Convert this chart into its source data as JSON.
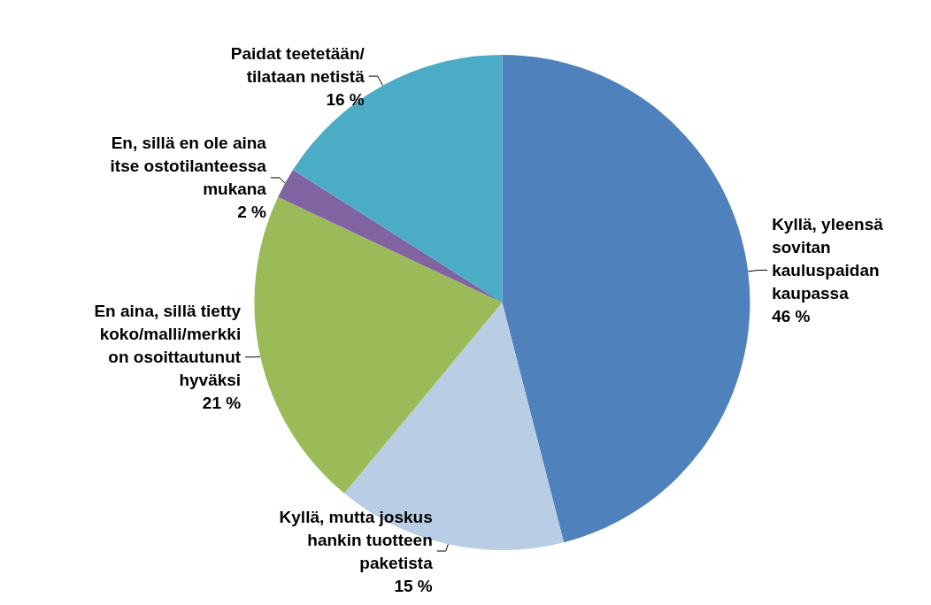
{
  "chart_data": {
    "type": "pie",
    "categories": [
      "Kyllä, yleensä\nsovitan\nkauluspaidan\nkaupassa",
      "Kyllä, mutta joskus\nhankin tuotteen\npaketista",
      "En aina, sillä tietty\nkoko/malli/merkki\non osoittautunut\nhyväksi",
      "En, sillä en ole aina\nitse ostotilanteessa\nmukana",
      "Paidat teetetään/\ntilataan netistä"
    ],
    "values": [
      46,
      15,
      21,
      2,
      16
    ],
    "value_labels": [
      "46 %",
      "15 %",
      "21 %",
      "2 %",
      "16 %"
    ],
    "colors": [
      "#4f81bd",
      "#b9cde5",
      "#9bbb59",
      "#8064a2",
      "#4bacc6"
    ]
  }
}
